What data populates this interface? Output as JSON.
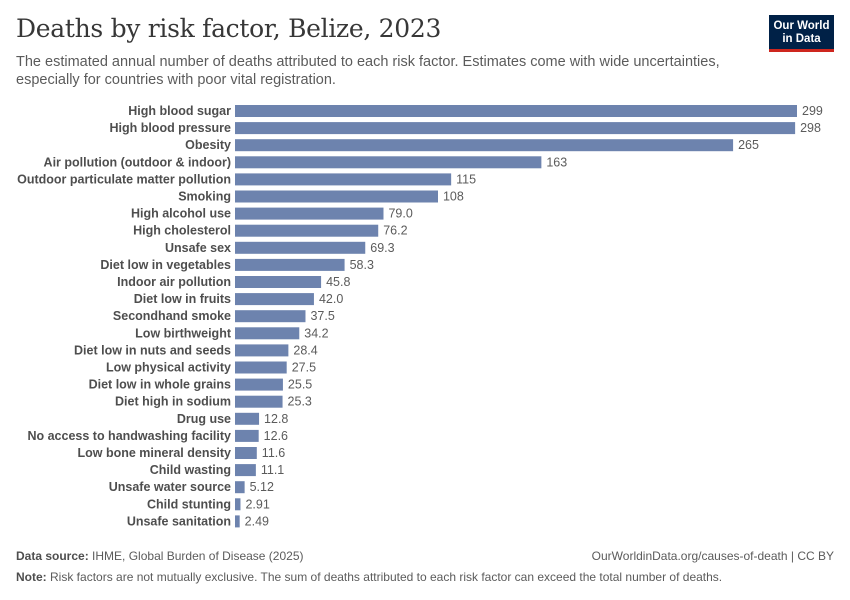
{
  "header": {
    "title": "Deaths by risk factor, Belize, 2023",
    "subtitle": "The estimated annual number of deaths attributed to each risk factor. Estimates come with wide uncertainties, especially for countries with poor vital registration."
  },
  "logo": {
    "line1": "Our World",
    "line2": "in Data"
  },
  "colors": {
    "bar": "#6d83ae",
    "logo_bg": "#002147",
    "logo_accent": "#ce261e"
  },
  "chart_data": {
    "type": "bar",
    "orientation": "horizontal",
    "title": "Deaths by risk factor, Belize, 2023",
    "xlabel": "",
    "ylabel": "",
    "xlim": [
      0,
      299
    ],
    "categories": [
      "High blood sugar",
      "High blood pressure",
      "Obesity",
      "Air pollution (outdoor & indoor)",
      "Outdoor particulate matter pollution",
      "Smoking",
      "High alcohol use",
      "High cholesterol",
      "Unsafe sex",
      "Diet low in vegetables",
      "Indoor air pollution",
      "Diet low in fruits",
      "Secondhand smoke",
      "Low birthweight",
      "Diet low in nuts and seeds",
      "Low physical activity",
      "Diet low in whole grains",
      "Diet high in sodium",
      "Drug use",
      "No access to handwashing facility",
      "Low bone mineral density",
      "Child wasting",
      "Unsafe water source",
      "Child stunting",
      "Unsafe sanitation"
    ],
    "values": [
      299,
      298,
      265,
      163,
      115,
      108,
      79.0,
      76.2,
      69.3,
      58.3,
      45.8,
      42.0,
      37.5,
      34.2,
      28.4,
      27.5,
      25.5,
      25.3,
      12.8,
      12.6,
      11.6,
      11.1,
      5.12,
      2.91,
      2.49
    ],
    "value_labels": [
      "299",
      "298",
      "265",
      "163",
      "115",
      "108",
      "79.0",
      "76.2",
      "69.3",
      "58.3",
      "45.8",
      "42.0",
      "37.5",
      "34.2",
      "28.4",
      "27.5",
      "25.5",
      "25.3",
      "12.8",
      "12.6",
      "11.6",
      "11.1",
      "5.12",
      "2.91",
      "2.49"
    ]
  },
  "footer": {
    "source_label": "Data source:",
    "source_text": "IHME, Global Burden of Disease (2025)",
    "license": "OurWorldinData.org/causes-of-death | CC BY",
    "note_label": "Note:",
    "note_text": "Risk factors are not mutually exclusive. The sum of deaths attributed to each risk factor can exceed the total number of deaths."
  }
}
